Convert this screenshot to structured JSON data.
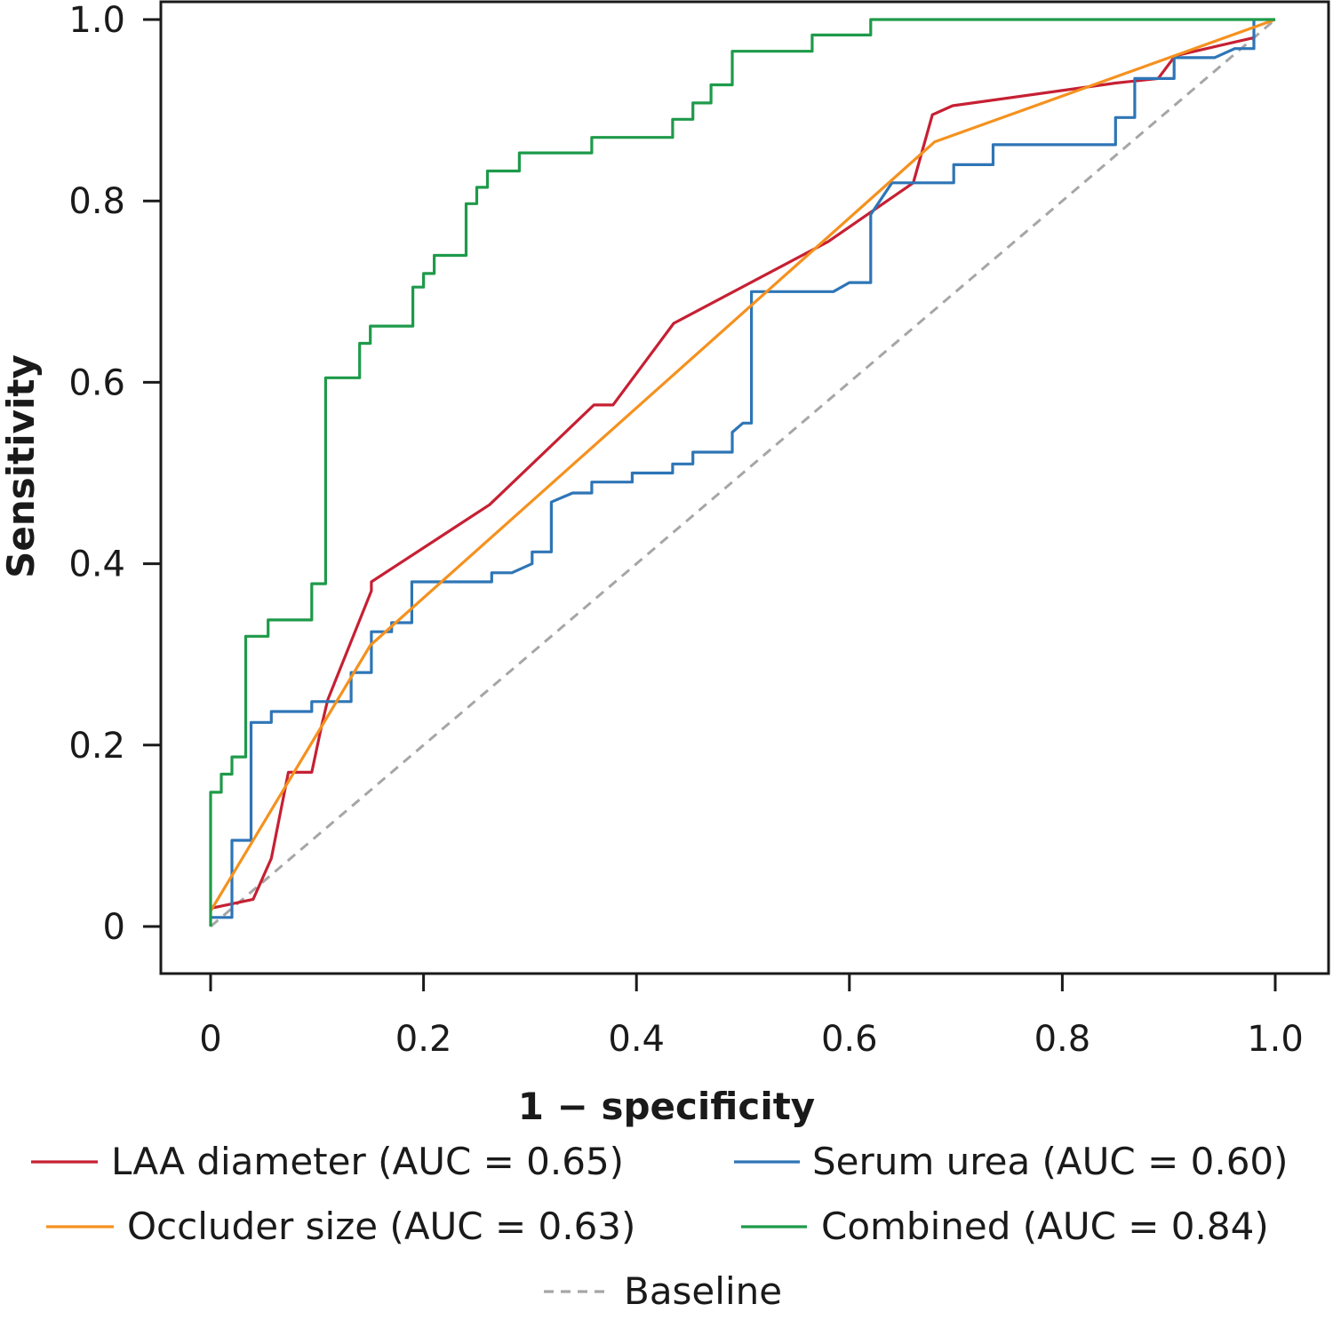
{
  "chart_data": {
    "type": "line",
    "title": "",
    "xlabel": "1 − specificity",
    "ylabel": "Sensitivity",
    "xlim": [
      0,
      1
    ],
    "ylim": [
      0,
      1
    ],
    "x_ticks": [
      {
        "value": 0,
        "label": "0"
      },
      {
        "value": 0.2,
        "label": "0.2"
      },
      {
        "value": 0.4,
        "label": "0.4"
      },
      {
        "value": 0.6,
        "label": "0.6"
      },
      {
        "value": 0.8,
        "label": "0.8"
      },
      {
        "value": 1.0,
        "label": "1.0"
      }
    ],
    "y_ticks": [
      {
        "value": 0,
        "label": "0"
      },
      {
        "value": 0.2,
        "label": "0.2"
      },
      {
        "value": 0.4,
        "label": "0.4"
      },
      {
        "value": 0.6,
        "label": "0.6"
      },
      {
        "value": 0.8,
        "label": "0.8"
      },
      {
        "value": 1.0,
        "label": "1.0"
      }
    ],
    "grid": false,
    "legend_position": "bottom",
    "series": [
      {
        "name": "LAA diameter (AUC = 0.65)",
        "color": "#c62033",
        "dash": "solid",
        "points": [
          [
            0,
            0.02
          ],
          [
            0.04,
            0.03
          ],
          [
            0.057,
            0.075
          ],
          [
            0.073,
            0.17
          ],
          [
            0.095,
            0.17
          ],
          [
            0.104,
            0.22
          ],
          [
            0.11,
            0.25
          ],
          [
            0.151,
            0.37
          ],
          [
            0.151,
            0.38
          ],
          [
            0.262,
            0.465
          ],
          [
            0.36,
            0.575
          ],
          [
            0.378,
            0.575
          ],
          [
            0.435,
            0.665
          ],
          [
            0.58,
            0.755
          ],
          [
            0.66,
            0.82
          ],
          [
            0.678,
            0.895
          ],
          [
            0.697,
            0.905
          ],
          [
            0.85,
            0.93
          ],
          [
            0.89,
            0.935
          ],
          [
            0.906,
            0.96
          ],
          [
            0.98,
            0.98
          ]
        ]
      },
      {
        "name": "Serum urea (AUC = 0.60)",
        "color": "#2e75b6",
        "dash": "solid",
        "points": [
          [
            0,
            0.01
          ],
          [
            0.02,
            0.01
          ],
          [
            0.02,
            0.095
          ],
          [
            0.038,
            0.095
          ],
          [
            0.038,
            0.225
          ],
          [
            0.057,
            0.225
          ],
          [
            0.057,
            0.237
          ],
          [
            0.095,
            0.237
          ],
          [
            0.095,
            0.248
          ],
          [
            0.132,
            0.248
          ],
          [
            0.132,
            0.26
          ],
          [
            0.132,
            0.28
          ],
          [
            0.151,
            0.28
          ],
          [
            0.151,
            0.325
          ],
          [
            0.17,
            0.325
          ],
          [
            0.17,
            0.335
          ],
          [
            0.189,
            0.335
          ],
          [
            0.189,
            0.38
          ],
          [
            0.264,
            0.38
          ],
          [
            0.264,
            0.39
          ],
          [
            0.283,
            0.39
          ],
          [
            0.302,
            0.4
          ],
          [
            0.302,
            0.413
          ],
          [
            0.32,
            0.413
          ],
          [
            0.32,
            0.468
          ],
          [
            0.34,
            0.478
          ],
          [
            0.358,
            0.478
          ],
          [
            0.358,
            0.49
          ],
          [
            0.396,
            0.49
          ],
          [
            0.396,
            0.5
          ],
          [
            0.434,
            0.5
          ],
          [
            0.434,
            0.51
          ],
          [
            0.453,
            0.51
          ],
          [
            0.453,
            0.523
          ],
          [
            0.49,
            0.523
          ],
          [
            0.49,
            0.545
          ],
          [
            0.5,
            0.555
          ],
          [
            0.508,
            0.555
          ],
          [
            0.508,
            0.7
          ],
          [
            0.585,
            0.7
          ],
          [
            0.6,
            0.71
          ],
          [
            0.62,
            0.71
          ],
          [
            0.62,
            0.785
          ],
          [
            0.64,
            0.82
          ],
          [
            0.698,
            0.82
          ],
          [
            0.698,
            0.84
          ],
          [
            0.735,
            0.84
          ],
          [
            0.735,
            0.862
          ],
          [
            0.85,
            0.862
          ],
          [
            0.85,
            0.892
          ],
          [
            0.868,
            0.892
          ],
          [
            0.868,
            0.935
          ],
          [
            0.905,
            0.935
          ],
          [
            0.905,
            0.958
          ],
          [
            0.943,
            0.958
          ],
          [
            0.962,
            0.968
          ],
          [
            0.98,
            0.968
          ],
          [
            0.98,
            1.0
          ]
        ]
      },
      {
        "name": "Occluder size (AUC = 0.63)",
        "color": "#f5911e",
        "dash": "solid",
        "points": [
          [
            0,
            0.017
          ],
          [
            0.15,
            0.31
          ],
          [
            0.68,
            0.865
          ],
          [
            1.0,
            1.0
          ]
        ]
      },
      {
        "name": "Combined (AUC = 0.84)",
        "color": "#1e9a4a",
        "dash": "solid",
        "points": [
          [
            0,
            0
          ],
          [
            0,
            0.148
          ],
          [
            0.01,
            0.148
          ],
          [
            0.01,
            0.168
          ],
          [
            0.02,
            0.168
          ],
          [
            0.02,
            0.187
          ],
          [
            0.033,
            0.187
          ],
          [
            0.033,
            0.32
          ],
          [
            0.054,
            0.32
          ],
          [
            0.054,
            0.338
          ],
          [
            0.095,
            0.338
          ],
          [
            0.095,
            0.378
          ],
          [
            0.108,
            0.378
          ],
          [
            0.108,
            0.605
          ],
          [
            0.14,
            0.605
          ],
          [
            0.14,
            0.643
          ],
          [
            0.15,
            0.643
          ],
          [
            0.15,
            0.662
          ],
          [
            0.19,
            0.662
          ],
          [
            0.19,
            0.705
          ],
          [
            0.2,
            0.705
          ],
          [
            0.2,
            0.72
          ],
          [
            0.21,
            0.72
          ],
          [
            0.21,
            0.74
          ],
          [
            0.24,
            0.74
          ],
          [
            0.24,
            0.797
          ],
          [
            0.25,
            0.797
          ],
          [
            0.25,
            0.815
          ],
          [
            0.26,
            0.815
          ],
          [
            0.26,
            0.833
          ],
          [
            0.29,
            0.833
          ],
          [
            0.29,
            0.853
          ],
          [
            0.358,
            0.853
          ],
          [
            0.358,
            0.87
          ],
          [
            0.434,
            0.87
          ],
          [
            0.434,
            0.89
          ],
          [
            0.453,
            0.89
          ],
          [
            0.453,
            0.908
          ],
          [
            0.47,
            0.908
          ],
          [
            0.47,
            0.928
          ],
          [
            0.49,
            0.928
          ],
          [
            0.49,
            0.965
          ],
          [
            0.565,
            0.965
          ],
          [
            0.565,
            0.983
          ],
          [
            0.62,
            0.983
          ],
          [
            0.62,
            1.0
          ],
          [
            1.0,
            1.0
          ]
        ]
      },
      {
        "name": "Baseline",
        "color": "#a6a6a6",
        "dash": "dashed",
        "points": [
          [
            0,
            0
          ],
          [
            1,
            1
          ]
        ]
      }
    ]
  }
}
